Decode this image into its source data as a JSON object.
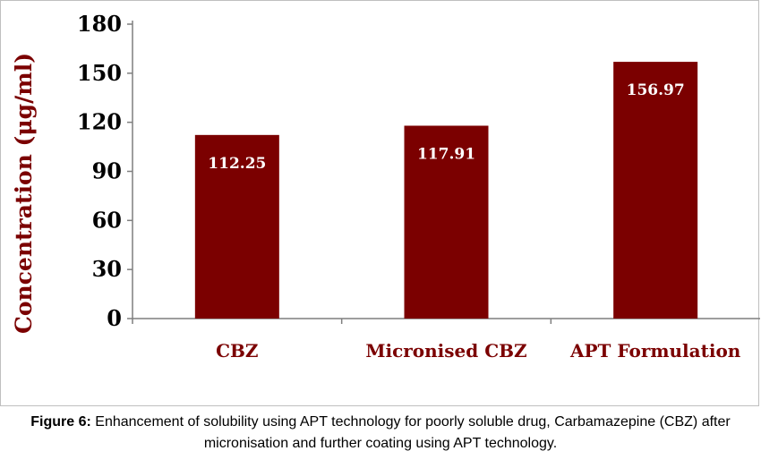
{
  "chart_data": {
    "type": "bar",
    "categories": [
      "CBZ",
      "Micronised  CBZ",
      "APT Formulation"
    ],
    "values": [
      112.25,
      117.91,
      156.97
    ],
    "data_labels": [
      "112.25",
      "117.91",
      "156.97"
    ],
    "ylabel": "Concentration (μg/ml)",
    "xlabel": "",
    "ylim": [
      0,
      180
    ],
    "yticks": [
      0,
      30,
      60,
      90,
      120,
      150,
      180
    ],
    "grid": false,
    "legend": "none"
  },
  "colors": {
    "bar_fill": "#7b0000",
    "label_color": "#7b0000",
    "axis_color": "#7f7f7f"
  },
  "caption": {
    "label": "Figure 6:",
    "text": " Enhancement of solubility using APT technology for poorly soluble drug, Carbamazepine (CBZ) after micronisation and further coating using APT technology."
  }
}
